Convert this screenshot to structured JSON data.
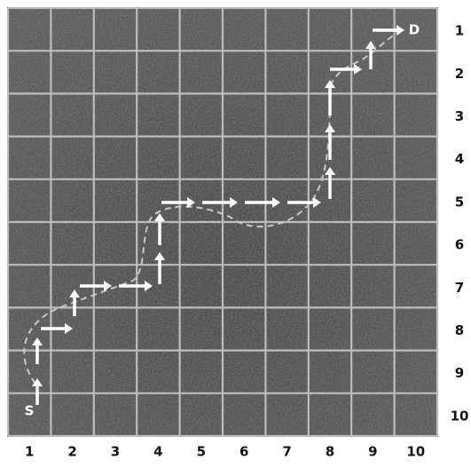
{
  "grid": {
    "column_labels": [
      "1",
      "2",
      "3",
      "4",
      "5",
      "6",
      "7",
      "8",
      "9",
      "10"
    ],
    "row_labels": [
      "1",
      "2",
      "3",
      "4",
      "5",
      "6",
      "7",
      "8",
      "9",
      "10"
    ]
  },
  "start_label": "S",
  "end_label": "D"
}
